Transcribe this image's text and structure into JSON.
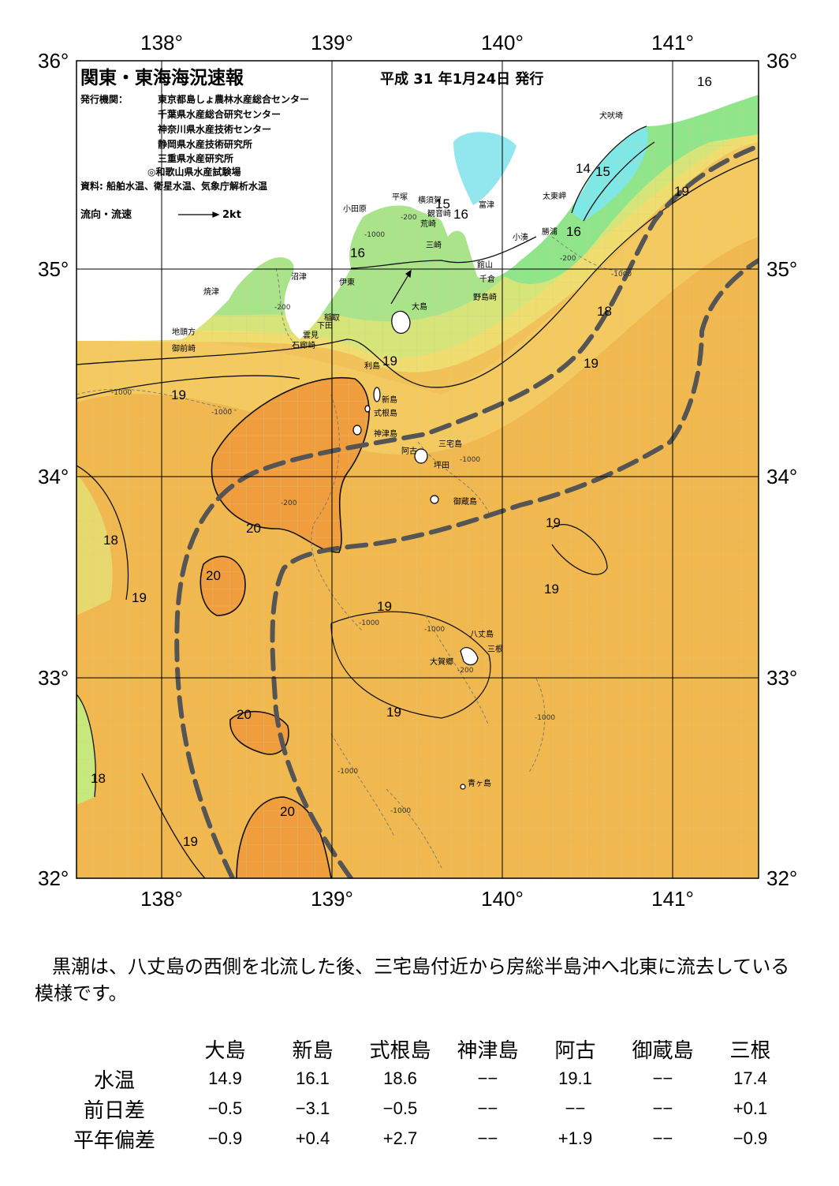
{
  "map": {
    "title": "関東・東海海況速報",
    "issue_date": "平成 31 年1月24日 発行",
    "publisher_label": "発行機関：",
    "publishers": [
      "東京都島しょ農林水産総合センター",
      "千葉県水産総合研究センター",
      "神奈川県水産技術センター",
      "静岡県水産技術研究所",
      "三重県水産研究所",
      "◎和歌山県水産試験場"
    ],
    "source": "資料: 船舶水温、衛星水温、気象庁解析水温",
    "current_legend_label": "流向・流速",
    "current_legend_value": "2kt",
    "lon_ticks": [
      "138°",
      "139°",
      "140°",
      "141°"
    ],
    "lat_ticks": [
      "36°",
      "35°",
      "34°",
      "33°",
      "32°"
    ],
    "place_names": [
      "犬吠埼",
      "太東岬",
      "勝浦",
      "小湊",
      "富津",
      "横須賀",
      "観音崎",
      "平塚",
      "小田原",
      "荒崎",
      "三崎",
      "館山",
      "千倉",
      "野島崎",
      "沼津",
      "伊東",
      "焼津",
      "稲取",
      "下田",
      "雲見",
      "石廊崎",
      "地頭方",
      "御前崎",
      "大島",
      "利島",
      "新島",
      "式根島",
      "神津島",
      "三宅島",
      "阿古",
      "坪田",
      "御蔵島",
      "八丈島",
      "三根",
      "大賀郷",
      "青ヶ島"
    ],
    "isotherm_labels": [
      "16",
      "14",
      "15",
      "15",
      "16",
      "16",
      "16",
      "19",
      "18",
      "19",
      "19",
      "19",
      "20",
      "19",
      "18",
      "20",
      "19",
      "19",
      "19",
      "20",
      "18",
      "20",
      "19"
    ],
    "depth_labels": [
      "-200",
      "-1000"
    ],
    "colors": {
      "t14": "#7ee8e6",
      "t15": "#a6f0a0",
      "t16": "#8fe58a",
      "t17": "#c7e87a",
      "t18": "#f0dd70",
      "t19": "#f4c55a",
      "t20": "#efa340",
      "land": "#ffffff",
      "kuroshio": "#555555",
      "sea_shallow": "#92e6ed"
    }
  },
  "description": "黒潮は、八丈島の西側を北流した後、三宅島付近から房総半島沖へ北東に流去している模様です。",
  "observation_table": {
    "columns": [
      "大島",
      "新島",
      "式根島",
      "神津島",
      "阿古",
      "御蔵島",
      "三根"
    ],
    "rows": [
      {
        "label": "水温",
        "values": [
          "14.9",
          "16.1",
          "18.6",
          "−−",
          "19.1",
          "−−",
          "17.4"
        ]
      },
      {
        "label": "前日差",
        "values": [
          "−0.5",
          "−3.1",
          "−0.5",
          "−−",
          "−−",
          "−−",
          "+0.1"
        ]
      },
      {
        "label": "平年偏差",
        "values": [
          "−0.9",
          "+0.4",
          "+2.7",
          "−−",
          "+1.9",
          "−−",
          "−0.9"
        ]
      }
    ]
  }
}
